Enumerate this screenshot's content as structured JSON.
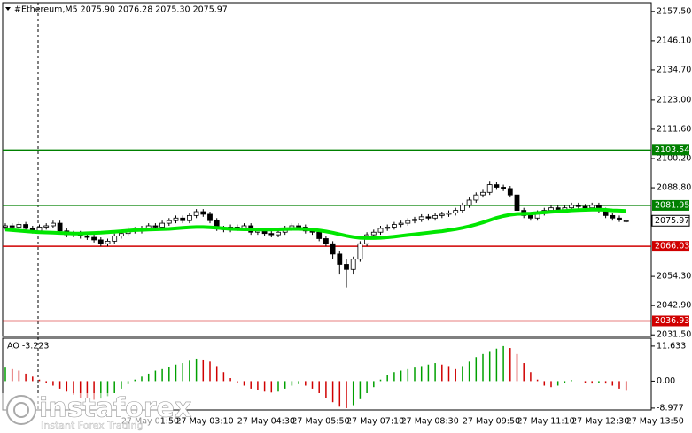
{
  "chart_data": [
    {
      "type": "candlestick",
      "title": "#Ethereum,M5  2075.90 2076.28 2075.30 2075.97",
      "categories": [
        null,
        null,
        null,
        null,
        null,
        null,
        null,
        null,
        null,
        null,
        null,
        null,
        null,
        null,
        null,
        null,
        null,
        "27 May 01:50",
        null,
        null,
        null,
        null,
        null,
        null,
        null,
        "27 May 03:10",
        null,
        null,
        null,
        null,
        null,
        null,
        null,
        null,
        "27 May 04:30",
        null,
        null,
        null,
        null,
        null,
        null,
        null,
        "27 May 05:50",
        null,
        null,
        null,
        null,
        null,
        null,
        null,
        "27 May 07:10",
        null,
        null,
        null,
        null,
        null,
        null,
        null,
        "27 May 08:30",
        null,
        null,
        null,
        null,
        null,
        null,
        null,
        null,
        "27 May 09:50",
        null,
        null,
        null,
        null,
        null,
        null,
        null,
        "27 May 11:10",
        null,
        null,
        null,
        null,
        null,
        null,
        null,
        "27 May 12:30",
        null,
        null,
        null,
        null,
        null,
        null,
        null,
        "27 May 13:50"
      ],
      "open": [
        2073.5,
        2074,
        2073.5,
        2074.5,
        2073,
        2072,
        2073.5,
        2074,
        2075,
        2072,
        2070.5,
        2071,
        2070,
        2069.5,
        2068.5,
        2067,
        2068,
        2070,
        2071,
        2072.5,
        2072,
        2073,
        2074,
        2073.5,
        2075,
        2076,
        2077,
        2076,
        2078,
        2079.5,
        2078.5,
        2076,
        2073,
        2072.5,
        2073.5,
        2073,
        2074,
        2071.5,
        2072,
        2071,
        2070.5,
        2071.5,
        2073,
        2074,
        2073.5,
        2072,
        2071.5,
        2069,
        2067,
        2063,
        2059,
        2057,
        2061,
        2067,
        2070.5,
        2071.5,
        2073,
        2073.5,
        2074.5,
        2075,
        2076,
        2076.5,
        2077.5,
        2077,
        2078,
        2078.5,
        2079,
        2080,
        2082,
        2084,
        2086,
        2087,
        2090,
        2089,
        2088.5,
        2086,
        2080,
        2078,
        2077,
        2079,
        2080,
        2081,
        2080,
        2081,
        2082,
        2081.5,
        2081,
        2082,
        2080,
        2078,
        2077,
        2075.9
      ],
      "high": [
        2075,
        2075,
        2075.5,
        2075.5,
        2074,
        2074.5,
        2075,
        2076,
        2076,
        2073,
        2072,
        2072,
        2071,
        2070.5,
        2069.5,
        2069,
        2071,
        2072,
        2073.5,
        2073.5,
        2074,
        2075,
        2075,
        2076,
        2077,
        2078,
        2078,
        2079,
        2080.5,
        2080.5,
        2079.5,
        2077,
        2074,
        2074.5,
        2074.5,
        2075,
        2075,
        2073,
        2073,
        2072,
        2072.5,
        2074,
        2075,
        2075,
        2074.5,
        2073,
        2072.5,
        2070,
        2068,
        2064,
        2061,
        2062,
        2068,
        2071.5,
        2072.5,
        2074,
        2074.5,
        2075.5,
        2076,
        2077,
        2077.5,
        2078.5,
        2078.5,
        2079,
        2079.5,
        2080,
        2081,
        2083,
        2085,
        2087,
        2088,
        2091.5,
        2091,
        2090,
        2089.5,
        2087,
        2081,
        2079,
        2080,
        2081,
        2082,
        2082,
        2082,
        2083,
        2083,
        2082.5,
        2083,
        2083,
        2081,
        2079,
        2078,
        2076.28
      ],
      "low": [
        2072.5,
        2072.5,
        2072.5,
        2072,
        2071,
        2071,
        2072.5,
        2073,
        2071,
        2069.5,
        2069.5,
        2069,
        2068.5,
        2067.5,
        2066,
        2066,
        2067,
        2069,
        2070,
        2071,
        2071,
        2072,
        2072.5,
        2072.5,
        2074,
        2075,
        2075,
        2075,
        2077,
        2077.5,
        2075,
        2072,
        2071.5,
        2071.5,
        2072,
        2072,
        2070.5,
        2070.5,
        2070,
        2069.5,
        2069.5,
        2070.5,
        2072,
        2072.5,
        2071,
        2070.5,
        2068,
        2066,
        2061,
        2055,
        2050,
        2055,
        2060,
        2066,
        2069.5,
        2070.5,
        2072,
        2072.5,
        2073.5,
        2074,
        2075,
        2075.5,
        2076,
        2076,
        2077,
        2077.5,
        2078,
        2079,
        2081,
        2083,
        2085,
        2086,
        2088,
        2087.5,
        2085,
        2079,
        2077,
        2076,
        2076,
        2078,
        2079,
        2079,
        2079,
        2080,
        2080.5,
        2080,
        2080,
        2079,
        2077,
        2076,
        2075.5,
        2075.3
      ],
      "close": [
        2074,
        2073.5,
        2074.5,
        2073,
        2072,
        2073.5,
        2074,
        2075,
        2072,
        2070.5,
        2071,
        2070,
        2069.5,
        2068.5,
        2067,
        2068,
        2070,
        2071,
        2072.5,
        2072,
        2073,
        2074,
        2073.5,
        2075,
        2076,
        2077,
        2076,
        2078,
        2079.5,
        2078.5,
        2076,
        2073,
        2072.5,
        2073.5,
        2073,
        2074,
        2071.5,
        2072,
        2071,
        2070.5,
        2071.5,
        2073,
        2074,
        2073.5,
        2072,
        2071.5,
        2069,
        2067,
        2063,
        2059,
        2057,
        2061,
        2067,
        2070.5,
        2071.5,
        2073,
        2073.5,
        2074.5,
        2075,
        2076,
        2076.5,
        2077.5,
        2077,
        2078,
        2078.5,
        2079,
        2080,
        2082,
        2084,
        2086,
        2087,
        2090,
        2089,
        2088.5,
        2086,
        2080,
        2078,
        2077,
        2079,
        2080,
        2081,
        2080,
        2081,
        2082,
        2081.5,
        2081,
        2082,
        2080,
        2078,
        2077,
        2076.5,
        2075.97
      ],
      "up_color": "#ffffff",
      "down_color": "#000000",
      "ma": {
        "color": "#00e600",
        "values": [
          2072.5,
          2072.3,
          2072.1,
          2071.9,
          2071.7,
          2071.5,
          2071.4,
          2071.3,
          2071.2,
          2071.1,
          2071.0,
          2071.0,
          2071.1,
          2071.2,
          2071.3,
          2071.5,
          2071.7,
          2071.9,
          2072.1,
          2072.3,
          2072.4,
          2072.5,
          2072.6,
          2072.7,
          2072.8,
          2073.0,
          2073.2,
          2073.4,
          2073.5,
          2073.5,
          2073.4,
          2073.2,
          2073.0,
          2072.8,
          2072.7,
          2072.6,
          2072.6,
          2072.5,
          2072.5,
          2072.5,
          2072.6,
          2072.7,
          2072.8,
          2072.8,
          2072.7,
          2072.5,
          2072.2,
          2071.8,
          2071.3,
          2070.7,
          2070.1,
          2069.6,
          2069.3,
          2069.2,
          2069.2,
          2069.3,
          2069.5,
          2069.8,
          2070.1,
          2070.4,
          2070.7,
          2071.0,
          2071.3,
          2071.6,
          2071.9,
          2072.3,
          2072.7,
          2073.2,
          2073.8,
          2074.5,
          2075.3,
          2076.2,
          2077.1,
          2077.8,
          2078.3,
          2078.6,
          2078.7,
          2078.8,
          2079.0,
          2079.2,
          2079.4,
          2079.6,
          2079.8,
          2080.0,
          2080.1,
          2080.2,
          2080.3,
          2080.3,
          2080.2,
          2080.0,
          2079.9,
          2079.8
        ]
      },
      "levels": [
        {
          "value": 2103.54,
          "color": "#008000"
        },
        {
          "value": 2081.95,
          "color": "#008000"
        },
        {
          "value": 2066.03,
          "color": "#d00000"
        },
        {
          "value": 2036.93,
          "color": "#d00000"
        }
      ],
      "last_price": {
        "value": 2075.97,
        "color": "#000000"
      },
      "ylim": [
        2030.89,
        2160.2
      ],
      "yticks": [
        {
          "value": 2157.5,
          "label": "2157.50"
        },
        {
          "value": 2146.1,
          "label": "2146.10"
        },
        {
          "value": 2134.7,
          "label": "2134.70"
        },
        {
          "value": 2123,
          "label": "2123.00"
        },
        {
          "value": 2111.6,
          "label": "2111.60"
        },
        {
          "value": 2100.2,
          "label": "2100.20"
        },
        {
          "value": 2088.8,
          "label": "2088.80"
        },
        {
          "value": 2054.3,
          "label": "2054.30"
        },
        {
          "value": 2042.9,
          "label": "2042.90"
        },
        {
          "value": 2031.5,
          "label": "2031.50"
        }
      ],
      "grid": false,
      "watermark": {
        "brand": "instaforex",
        "tagline": "Instant Forex Trading"
      }
    },
    {
      "type": "bar",
      "title": "AO -3.223",
      "values": [
        4.5,
        4.0,
        3.5,
        2.5,
        1.5,
        0.5,
        -0.5,
        -1.5,
        -2.5,
        -3.5,
        -4.5,
        -5.5,
        -6.0,
        -6.2,
        -5.8,
        -5.0,
        -4.0,
        -2.5,
        -1.0,
        0.5,
        1.5,
        2.5,
        3.5,
        4.0,
        4.8,
        5.5,
        6.0,
        6.8,
        7.5,
        7.2,
        6.5,
        5.0,
        3.0,
        1.0,
        -0.5,
        -1.5,
        -2.5,
        -3.0,
        -3.5,
        -3.8,
        -3.5,
        -2.5,
        -1.5,
        -1.0,
        -1.5,
        -2.5,
        -4.0,
        -5.5,
        -7.0,
        -8.5,
        -9.0,
        -8.0,
        -6.0,
        -4.0,
        -2.0,
        0.5,
        2.0,
        3.0,
        3.5,
        4.0,
        4.5,
        5.0,
        5.5,
        6.0,
        5.5,
        5.0,
        4.0,
        5.0,
        6.5,
        8.0,
        9.0,
        10.0,
        10.8,
        11.633,
        11.0,
        9.0,
        6.0,
        3.0,
        0.5,
        -1.5,
        -2.0,
        -1.5,
        -0.5,
        0.3,
        0.0,
        -0.5,
        -0.8,
        -0.5,
        -0.8,
        -1.5,
        -2.5,
        -3.223
      ],
      "up_color": "#00a000",
      "down_color": "#d00000",
      "ylim": [
        -9.3,
        13.96
      ],
      "yticks": [
        11.633,
        {
          "value": 0,
          "label": "0.00"
        },
        -8.977
      ],
      "grid": false
    }
  ]
}
